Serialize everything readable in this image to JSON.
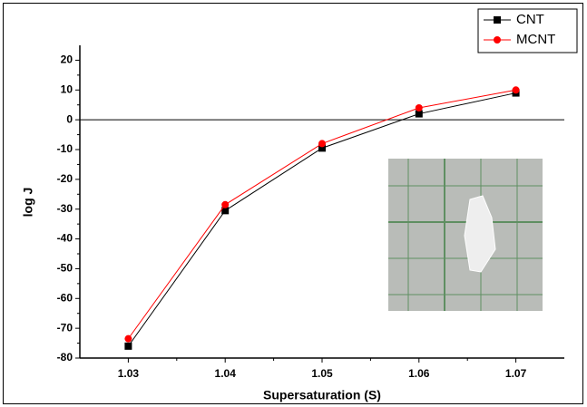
{
  "chart_data": {
    "type": "line",
    "x_label": "Supersaturation (S)",
    "y_label": "log J",
    "x": [
      1.03,
      1.04,
      1.05,
      1.06,
      1.07
    ],
    "series": [
      {
        "name": "CNT",
        "color": "#000000",
        "marker": "square",
        "values": [
          -76,
          -30.5,
          -9.5,
          2,
          9
        ]
      },
      {
        "name": "MCNT",
        "color": "#ff0000",
        "marker": "circle",
        "values": [
          -73.5,
          -28.5,
          -8,
          4,
          10
        ]
      }
    ],
    "xlim": [
      1.025,
      1.075
    ],
    "xticks": [
      1.03,
      1.04,
      1.05,
      1.06,
      1.07
    ],
    "ylim": [
      -80,
      25
    ],
    "yticks": [
      -80,
      -70,
      -60,
      -50,
      -40,
      -30,
      -20,
      -10,
      0,
      10,
      20
    ],
    "hline": 0,
    "legend": "top-right",
    "grid": false
  }
}
